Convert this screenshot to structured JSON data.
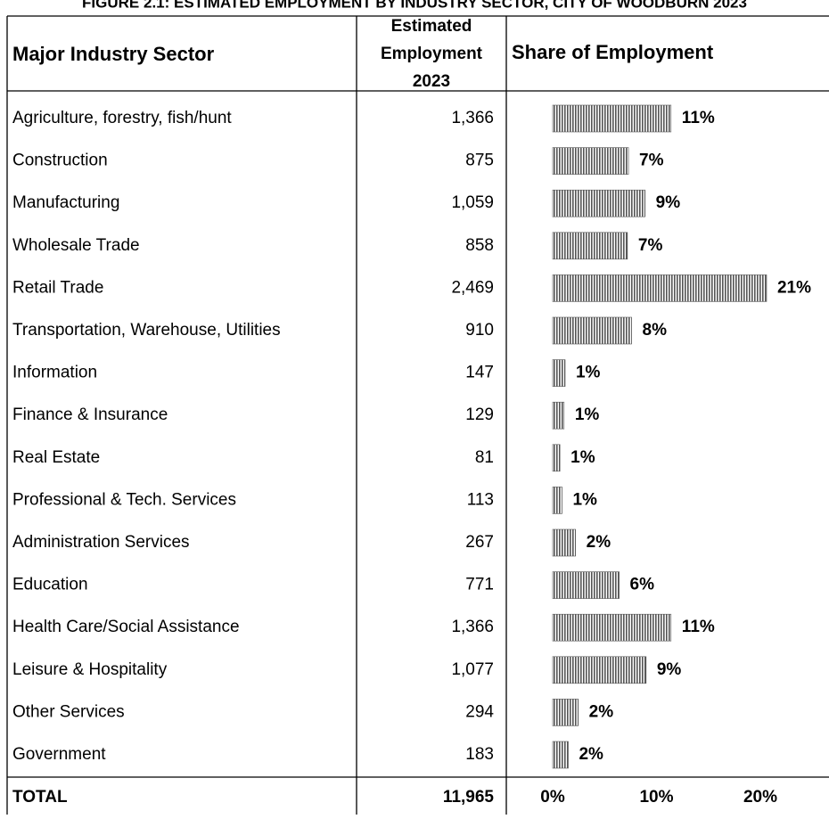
{
  "title": "FIGURE 2.1: ESTIMATED EMPLOYMENT BY INDUSTRY SECTOR, CITY OF WOODBURN 2023",
  "table": {
    "header_sector": "Major Industry Sector",
    "header_employment": [
      "Estimated",
      "Employment",
      "2023"
    ],
    "header_share": "Share of Employment",
    "employment": [
      "1,366",
      "875",
      "1,059",
      "858",
      "2,469",
      "910",
      "147",
      "129",
      "81",
      "113",
      "267",
      "771",
      "1,366",
      "1,077",
      "294",
      "183"
    ],
    "total_label": "TOTAL",
    "total_employment": "11,965"
  },
  "chart_data": {
    "type": "bar",
    "orientation": "horizontal",
    "categories": [
      "Agriculture, forestry, fish/hunt",
      "Construction",
      "Manufacturing",
      "Wholesale Trade",
      "Retail Trade",
      "Transportation, Warehouse, Utilities",
      "Information",
      "Finance & Insurance",
      "Real Estate",
      "Professional & Tech. Services",
      "Administration Services",
      "Education",
      "Health Care/Social Assistance",
      "Leisure & Hospitality",
      "Other Services",
      "Government"
    ],
    "values": [
      11.4,
      7.3,
      8.9,
      7.2,
      20.6,
      7.6,
      1.2,
      1.1,
      0.7,
      0.9,
      2.2,
      6.4,
      11.4,
      9.0,
      2.46,
      1.5
    ],
    "value_labels": [
      "11%",
      "7%",
      "9%",
      "7%",
      "21%",
      "8%",
      "1%",
      "1%",
      "1%",
      "1%",
      "2%",
      "6%",
      "11%",
      "9%",
      "2%",
      "2%"
    ],
    "xlim": [
      0,
      21
    ],
    "xticks": [
      {
        "value": 0,
        "label": "0%"
      },
      {
        "value": 10,
        "label": "10%"
      },
      {
        "value": 20,
        "label": "20%"
      }
    ],
    "color": "#555555"
  }
}
